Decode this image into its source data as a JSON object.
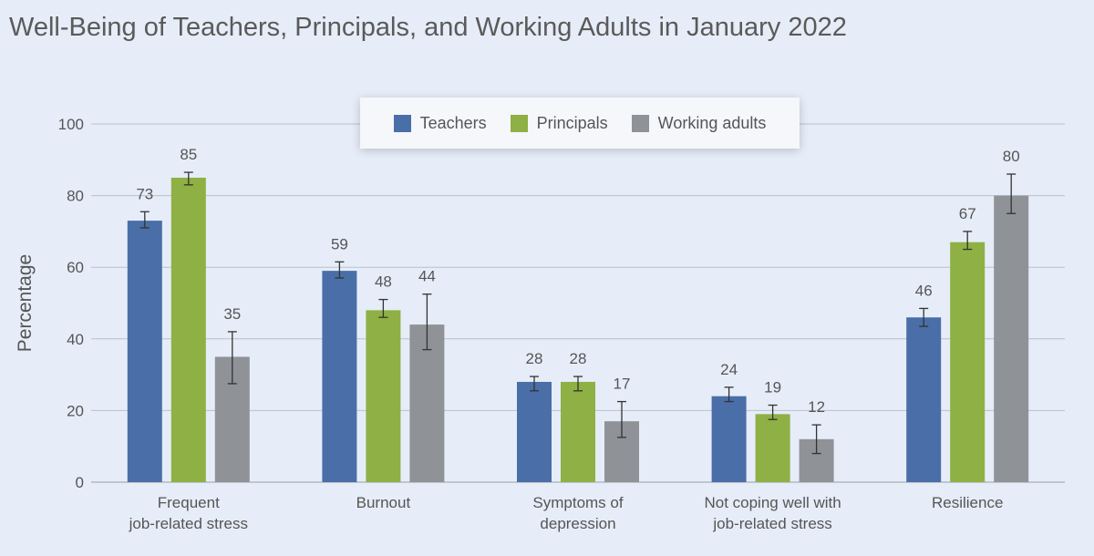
{
  "title": "Well-Being of Teachers, Principals, and Working Adults in January 2022",
  "chart_data": {
    "type": "bar",
    "title": "Well-Being of Teachers, Principals, and Working Adults in January 2022",
    "xlabel": "",
    "ylabel": "Percentage",
    "ylim": [
      0,
      100
    ],
    "yticks": [
      0,
      20,
      40,
      60,
      80,
      100
    ],
    "grid": true,
    "legend_position": "top-center",
    "categories": [
      [
        "Frequent",
        "job-related stress"
      ],
      [
        "Burnout"
      ],
      [
        "Symptoms of",
        "depression"
      ],
      [
        "Not coping well with",
        "job-related stress"
      ],
      [
        "Resilience"
      ]
    ],
    "series": [
      {
        "name": "Teachers",
        "color": "#4a6ea8",
        "values": [
          73,
          59,
          28,
          24,
          46
        ],
        "error_low": [
          71,
          57,
          25.5,
          22.5,
          43.5
        ],
        "error_high": [
          75.5,
          61.5,
          29.5,
          26.5,
          48.5
        ]
      },
      {
        "name": "Principals",
        "color": "#8eb044",
        "values": [
          85,
          48,
          28,
          19,
          67
        ],
        "error_low": [
          83,
          46,
          25.5,
          17.5,
          65
        ],
        "error_high": [
          86.5,
          51,
          29.5,
          21.5,
          70
        ]
      },
      {
        "name": "Working adults",
        "color": "#8f9297",
        "values": [
          35,
          44,
          17,
          12,
          80
        ],
        "error_low": [
          27.5,
          37,
          12.5,
          8,
          75
        ],
        "error_high": [
          42,
          52.5,
          22.5,
          16,
          86
        ]
      }
    ]
  }
}
